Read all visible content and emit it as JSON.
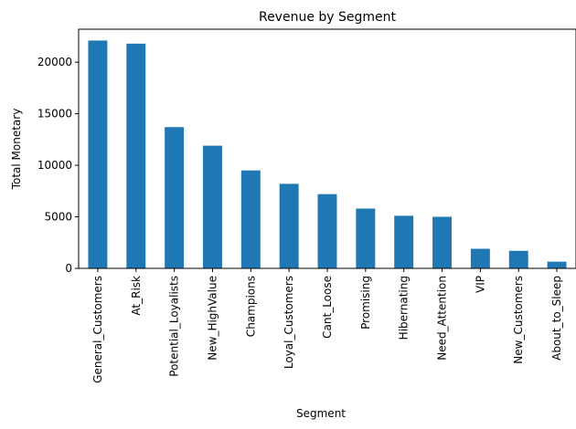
{
  "chart_data": {
    "type": "bar",
    "title": "Revenue by Segment",
    "xlabel": "Segment",
    "ylabel": "Total Monetary",
    "categories": [
      "General_Customers",
      "At_Risk",
      "Potential_Loyalists",
      "New_HighValue",
      "Champions",
      "Loyal_Customers",
      "Cant_Loose",
      "Promising",
      "Hibernating",
      "Need_Attention",
      "VIP",
      "New_Customers",
      "About_to_Sleep"
    ],
    "values": [
      22100,
      21800,
      13700,
      11900,
      9500,
      8200,
      7200,
      5800,
      5100,
      5000,
      1900,
      1700,
      650
    ],
    "ylim": [
      0,
      23200
    ],
    "yticks": [
      0,
      5000,
      10000,
      15000,
      20000
    ],
    "grid": false,
    "bar_color": "#1f77b4"
  }
}
